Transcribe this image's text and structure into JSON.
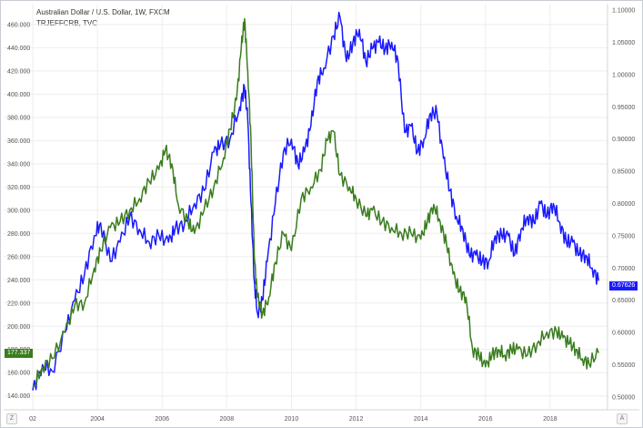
{
  "legend": {
    "line1": "Australian Dollar / U.S. Dollar, 1W, FXCM",
    "line2": "TRJEFFCRB, TVC"
  },
  "corner_left": "Z",
  "corner_right": "A",
  "colors": {
    "aud": "#1a1aff",
    "crb": "#3a7d1e",
    "grid": "#eeeeee"
  },
  "chart_data": {
    "type": "line",
    "x_ticks": [
      "02",
      "2004",
      "2006",
      "2008",
      "2010",
      "2012",
      "2014",
      "2016",
      "2018"
    ],
    "xlim": [
      2002.0,
      2019.55
    ],
    "left_axis": {
      "ticks": [
        "140.000",
        "160.000",
        "180.000",
        "200.000",
        "220.000",
        "240.000",
        "260.000",
        "280.000",
        "300.000",
        "320.000",
        "340.000",
        "360.000",
        "380.000",
        "400.000",
        "420.000",
        "440.000",
        "460.000"
      ],
      "ylim": [
        128,
        478
      ]
    },
    "right_axis": {
      "ticks": [
        "0.50000",
        "0.55000",
        "0.60000",
        "0.65000",
        "0.70000",
        "0.75000",
        "0.80000",
        "0.85000",
        "0.90000",
        "0.95000",
        "1.00000",
        "1.05000",
        "1.10000"
      ],
      "ylim": [
        0.48,
        1.11
      ]
    },
    "last_value_labels": {
      "aud": "0.67626",
      "crb": "177.337"
    },
    "series": [
      {
        "axis": "right",
        "color": "#1a1aff",
        "x": [
          2002.0,
          2002.3,
          2002.6,
          2003.0,
          2003.3,
          2003.6,
          2003.9,
          2004.1,
          2004.4,
          2004.7,
          2005.0,
          2005.3,
          2005.6,
          2005.9,
          2006.2,
          2006.4,
          2006.7,
          2007.0,
          2007.3,
          2007.6,
          2007.8,
          2008.1,
          2008.4,
          2008.55,
          2008.65,
          2008.75,
          2008.85,
          2008.95,
          2009.1,
          2009.25,
          2009.5,
          2009.75,
          2010.0,
          2010.2,
          2010.4,
          2010.6,
          2010.8,
          2011.0,
          2011.3,
          2011.5,
          2011.7,
          2011.9,
          2012.1,
          2012.3,
          2012.5,
          2012.7,
          2012.9,
          2013.1,
          2013.3,
          2013.5,
          2013.7,
          2013.9,
          2014.1,
          2014.3,
          2014.5,
          2014.7,
          2014.9,
          2015.1,
          2015.3,
          2015.5,
          2015.7,
          2015.9,
          2016.1,
          2016.3,
          2016.5,
          2016.7,
          2016.9,
          2017.1,
          2017.3,
          2017.5,
          2017.7,
          2017.9,
          2018.1,
          2018.3,
          2018.5,
          2018.7,
          2018.9,
          2019.1,
          2019.3,
          2019.5
        ],
        "values": [
          0.51,
          0.55,
          0.54,
          0.6,
          0.65,
          0.69,
          0.75,
          0.77,
          0.71,
          0.74,
          0.78,
          0.76,
          0.74,
          0.75,
          0.74,
          0.76,
          0.77,
          0.8,
          0.82,
          0.88,
          0.89,
          0.9,
          0.95,
          0.98,
          0.93,
          0.8,
          0.68,
          0.63,
          0.65,
          0.71,
          0.8,
          0.88,
          0.9,
          0.86,
          0.88,
          0.92,
          0.99,
          1.01,
          1.06,
          1.09,
          1.02,
          1.05,
          1.07,
          1.02,
          1.04,
          1.05,
          1.04,
          1.05,
          1.02,
          0.91,
          0.92,
          0.88,
          0.9,
          0.94,
          0.94,
          0.87,
          0.82,
          0.78,
          0.76,
          0.72,
          0.72,
          0.71,
          0.71,
          0.75,
          0.75,
          0.75,
          0.72,
          0.76,
          0.78,
          0.77,
          0.8,
          0.78,
          0.8,
          0.77,
          0.74,
          0.74,
          0.72,
          0.72,
          0.7,
          0.68
        ]
      },
      {
        "axis": "left",
        "color": "#3a7d1e",
        "x": [
          2002.0,
          2002.3,
          2002.6,
          2003.0,
          2003.3,
          2003.6,
          2003.9,
          2004.1,
          2004.4,
          2004.7,
          2005.0,
          2005.3,
          2005.6,
          2005.9,
          2006.1,
          2006.3,
          2006.5,
          2006.8,
          2007.0,
          2007.3,
          2007.6,
          2007.9,
          2008.1,
          2008.3,
          2008.45,
          2008.55,
          2008.65,
          2008.75,
          2008.85,
          2008.95,
          2009.1,
          2009.3,
          2009.5,
          2009.75,
          2010.0,
          2010.3,
          2010.6,
          2010.9,
          2011.1,
          2011.3,
          2011.5,
          2011.8,
          2012.0,
          2012.3,
          2012.5,
          2012.8,
          2013.1,
          2013.4,
          2013.7,
          2014.0,
          2014.2,
          2014.4,
          2014.6,
          2014.8,
          2015.0,
          2015.2,
          2015.4,
          2015.6,
          2015.8,
          2016.0,
          2016.2,
          2016.4,
          2016.6,
          2016.8,
          2017.0,
          2017.3,
          2017.6,
          2017.9,
          2018.2,
          2018.4,
          2018.6,
          2018.8,
          2019.0,
          2019.2,
          2019.5
        ],
        "values": [
          147,
          165,
          172,
          195,
          218,
          220,
          250,
          265,
          285,
          290,
          300,
          310,
          325,
          335,
          352,
          340,
          305,
          290,
          280,
          300,
          320,
          345,
          370,
          395,
          440,
          465,
          420,
          360,
          260,
          225,
          210,
          225,
          255,
          280,
          265,
          310,
          320,
          335,
          360,
          368,
          330,
          320,
          310,
          295,
          300,
          290,
          285,
          280,
          280,
          275,
          290,
          305,
          290,
          270,
          245,
          230,
          225,
          180,
          175,
          165,
          175,
          180,
          175,
          180,
          180,
          175,
          185,
          195,
          195,
          190,
          185,
          180,
          172,
          168,
          177
        ]
      }
    ]
  }
}
